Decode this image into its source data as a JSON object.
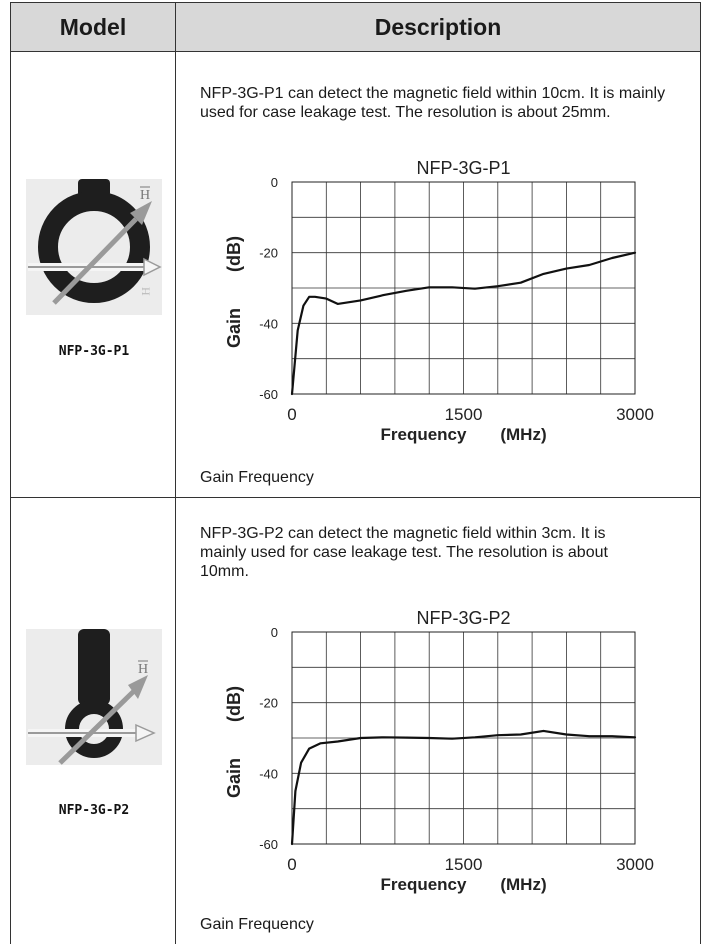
{
  "header": {
    "model": "Model",
    "description": "Description"
  },
  "rows": [
    {
      "model_label": "NFP-3G-P1",
      "description": "NFP-3G-P1 can detect the magnetic field within 10cm. It is mainly used for case leakage test. The resolution is about 25mm.",
      "caption": "Gain  Frequency",
      "chart_data": {
        "type": "line",
        "title": "NFP-3G-P1",
        "xlabel": "Frequency",
        "xunit": "(MHz)",
        "ylabel": "Gain",
        "yunit": "(dB)",
        "xlim": [
          0,
          3000
        ],
        "ylim": [
          -60,
          0
        ],
        "x_ticks": [
          "0",
          "1500",
          "3000"
        ],
        "y_ticks": [
          "0",
          "-20",
          "-40",
          "-60"
        ],
        "grid": true,
        "series": [
          {
            "x": [
              0,
              50,
              100,
              150,
              200,
              300,
              400,
              600,
              800,
              1000,
              1200,
              1400,
              1600,
              1800,
              2000,
              2200,
              2400,
              2600,
              2800,
              3000
            ],
            "y": [
              -60,
              -42,
              -35,
              -32.5,
              -32.5,
              -33,
              -34.5,
              -33.5,
              -32,
              -30.8,
              -29.8,
              -29.8,
              -30.2,
              -29.5,
              -28.5,
              -26,
              -24.5,
              -23.5,
              -21.5,
              -20
            ]
          }
        ]
      }
    },
    {
      "model_label": "NFP-3G-P2",
      "description": "NFP-3G-P2 can detect the magnetic field within 3cm. It is mainly used for case leakage test. The resolution is about 10mm.",
      "caption": "Gain  Frequency",
      "chart_data": {
        "type": "line",
        "title": "NFP-3G-P2",
        "xlabel": "Frequency",
        "xunit": "(MHz)",
        "ylabel": "Gain",
        "yunit": "(dB)",
        "xlim": [
          0,
          3000
        ],
        "ylim": [
          -60,
          0
        ],
        "x_ticks": [
          "0",
          "1500",
          "3000"
        ],
        "y_ticks": [
          "0",
          "-20",
          "-40",
          "-60"
        ],
        "grid": true,
        "series": [
          {
            "x": [
              0,
              30,
              80,
              150,
              250,
              400,
              600,
              800,
              1000,
              1200,
              1400,
              1600,
              1800,
              2000,
              2200,
              2400,
              2600,
              2800,
              3000
            ],
            "y": [
              -60,
              -45,
              -37,
              -33,
              -31.5,
              -31,
              -30,
              -29.8,
              -29.9,
              -30,
              -30.2,
              -29.8,
              -29.2,
              -29,
              -28,
              -29,
              -29.5,
              -29.5,
              -29.8
            ]
          }
        ]
      }
    }
  ],
  "colors": {
    "header_bg": "#d8d8d8",
    "border": "#333333",
    "probe_body": "#1e1e1e",
    "arrow": "#8a8a8a"
  },
  "icons": {
    "probe_ring": "loop-probe-image",
    "probe_stick": "stick-probe-image"
  }
}
